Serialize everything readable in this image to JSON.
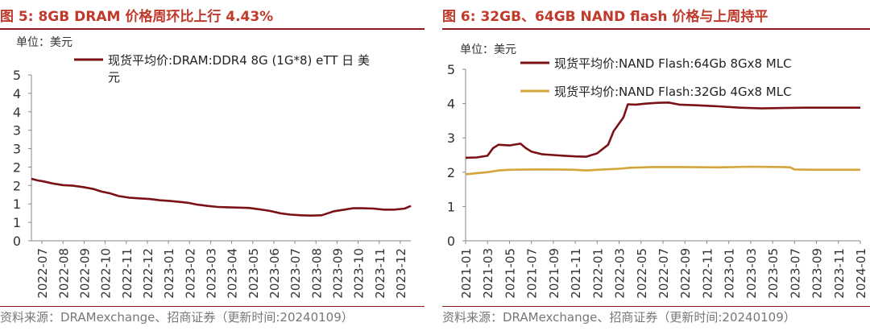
{
  "colors": {
    "title": "#c0392b",
    "rule": "#8b1a1a",
    "dram_line": "#7b1114",
    "nand64_line": "#7b1114",
    "nand32_line": "#d4a53a"
  },
  "source_text": "资料来源：DRAMexchange、招商证券（更新时间:20240109）",
  "chart_data": [
    {
      "type": "line",
      "title": "图 5:  8GB DRAM 价格周环比上行 4.43%",
      "unit_label": "单位：美元",
      "ylim": [
        0,
        5
      ],
      "yticks": [
        "0",
        "1",
        "1",
        "2",
        "2",
        "3",
        "3",
        "4",
        "4",
        "5"
      ],
      "xticks": [
        "2022-07",
        "2022-08",
        "2022-09",
        "2022-10",
        "2022-11",
        "2022-12",
        "2023-01",
        "2023-02",
        "2023-03",
        "2023-04",
        "2023-05",
        "2023-06",
        "2023-07",
        "2023-08",
        "2023-09",
        "2023-10",
        "2023-11",
        "2023-12"
      ],
      "xrange": [
        0,
        18.3
      ],
      "grid": false,
      "legend_position": "top-left",
      "series": [
        {
          "name": "现货平均价:DRAM:DDR4 8G (1G*8) eTT 日 美元",
          "color": "#7b1114",
          "points": [
            [
              0,
              1.87
            ],
            [
              0.3,
              1.82
            ],
            [
              0.6,
              1.79
            ],
            [
              1,
              1.73
            ],
            [
              1.5,
              1.68
            ],
            [
              2,
              1.66
            ],
            [
              2.5,
              1.62
            ],
            [
              3,
              1.56
            ],
            [
              3.4,
              1.48
            ],
            [
              3.8,
              1.43
            ],
            [
              4.2,
              1.35
            ],
            [
              4.7,
              1.3
            ],
            [
              5.2,
              1.28
            ],
            [
              5.7,
              1.26
            ],
            [
              6.2,
              1.22
            ],
            [
              6.7,
              1.2
            ],
            [
              7.2,
              1.17
            ],
            [
              7.6,
              1.14
            ],
            [
              8,
              1.09
            ],
            [
              8.5,
              1.05
            ],
            [
              9,
              1.02
            ],
            [
              9.5,
              1.01
            ],
            [
              10,
              1.0
            ],
            [
              10.5,
              0.99
            ],
            [
              11,
              0.95
            ],
            [
              11.5,
              0.9
            ],
            [
              12,
              0.83
            ],
            [
              12.5,
              0.79
            ],
            [
              13,
              0.77
            ],
            [
              13.5,
              0.76
            ],
            [
              14,
              0.77
            ],
            [
              14.3,
              0.83
            ],
            [
              14.6,
              0.89
            ],
            [
              15,
              0.93
            ],
            [
              15.5,
              0.98
            ],
            [
              16,
              0.98
            ],
            [
              16.5,
              0.97
            ],
            [
              17,
              0.94
            ],
            [
              17.5,
              0.94
            ],
            [
              18,
              0.97
            ],
            [
              18.3,
              1.05
            ]
          ]
        }
      ]
    },
    {
      "type": "line",
      "title": "图 6:  32GB、64GB NAND flash 价格与上周持平",
      "unit_label": "单位：美元",
      "ylim": [
        0,
        5
      ],
      "yticks": [
        "0",
        "1",
        "2",
        "3",
        "4",
        "5"
      ],
      "xticks": [
        "2021-01",
        "2021-03",
        "2021-05",
        "2021-07",
        "2021-09",
        "2021-11",
        "2022-01",
        "2022-03",
        "2022-05",
        "2022-07",
        "2022-09",
        "2022-11",
        "2023-01",
        "2023-03",
        "2023-05",
        "2023-07",
        "2023-09",
        "2023-11",
        "2024-01"
      ],
      "xrange": [
        0,
        36
      ],
      "grid": false,
      "legend_position": "top-left",
      "series": [
        {
          "name": "现货平均价:NAND Flash:64Gb 8Gx8 MLC",
          "color": "#7b1114",
          "points": [
            [
              0,
              2.42
            ],
            [
              1,
              2.43
            ],
            [
              2,
              2.48
            ],
            [
              2.5,
              2.7
            ],
            [
              3,
              2.8
            ],
            [
              4,
              2.78
            ],
            [
              5,
              2.83
            ],
            [
              5.5,
              2.7
            ],
            [
              6,
              2.6
            ],
            [
              7,
              2.52
            ],
            [
              8,
              2.5
            ],
            [
              9,
              2.48
            ],
            [
              10,
              2.46
            ],
            [
              11,
              2.45
            ],
            [
              12,
              2.55
            ],
            [
              13,
              2.8
            ],
            [
              13.5,
              3.2
            ],
            [
              14,
              3.42
            ],
            [
              14.4,
              3.6
            ],
            [
              14.8,
              3.98
            ],
            [
              15.5,
              3.97
            ],
            [
              16.5,
              4.0
            ],
            [
              17.5,
              4.02
            ],
            [
              18.5,
              4.03
            ],
            [
              19.5,
              3.97
            ],
            [
              21,
              3.95
            ],
            [
              23,
              3.92
            ],
            [
              25,
              3.88
            ],
            [
              27,
              3.86
            ],
            [
              29,
              3.87
            ],
            [
              31,
              3.88
            ],
            [
              33,
              3.88
            ],
            [
              36,
              3.88
            ]
          ]
        },
        {
          "name": "现货平均价:NAND Flash:32Gb 4Gx8 MLC",
          "color": "#d4a53a",
          "points": [
            [
              0,
              1.94
            ],
            [
              1,
              1.97
            ],
            [
              2,
              2.0
            ],
            [
              3,
              2.05
            ],
            [
              4,
              2.07
            ],
            [
              6,
              2.08
            ],
            [
              8,
              2.08
            ],
            [
              10,
              2.07
            ],
            [
              11,
              2.05
            ],
            [
              12,
              2.07
            ],
            [
              14,
              2.1
            ],
            [
              15,
              2.13
            ],
            [
              17,
              2.15
            ],
            [
              20,
              2.15
            ],
            [
              23,
              2.14
            ],
            [
              26,
              2.16
            ],
            [
              29,
              2.15
            ],
            [
              29.6,
              2.14
            ],
            [
              30,
              2.08
            ],
            [
              32,
              2.07
            ],
            [
              36,
              2.07
            ]
          ]
        }
      ]
    }
  ]
}
